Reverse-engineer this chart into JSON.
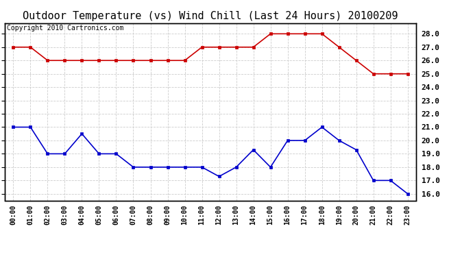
{
  "title": "Outdoor Temperature (vs) Wind Chill (Last 24 Hours) 20100209",
  "copyright": "Copyright 2010 Cartronics.com",
  "x_labels": [
    "00:00",
    "01:00",
    "02:00",
    "03:00",
    "04:00",
    "05:00",
    "06:00",
    "07:00",
    "08:00",
    "09:00",
    "10:00",
    "11:00",
    "12:00",
    "13:00",
    "14:00",
    "15:00",
    "16:00",
    "17:00",
    "18:00",
    "19:00",
    "20:00",
    "21:00",
    "22:00",
    "23:00"
  ],
  "temp_data": [
    27.0,
    27.0,
    26.0,
    26.0,
    26.0,
    26.0,
    26.0,
    26.0,
    26.0,
    26.0,
    26.0,
    27.0,
    27.0,
    27.0,
    27.0,
    28.0,
    28.0,
    28.0,
    28.0,
    27.0,
    26.0,
    25.0,
    25.0,
    25.0
  ],
  "wind_chill_data": [
    21.0,
    21.0,
    19.0,
    19.0,
    20.5,
    19.0,
    19.0,
    18.0,
    18.0,
    18.0,
    18.0,
    18.0,
    17.3,
    18.0,
    19.3,
    18.0,
    20.0,
    20.0,
    21.0,
    20.0,
    19.3,
    17.0,
    17.0,
    16.0
  ],
  "temp_color": "#cc0000",
  "wind_chill_color": "#0000cc",
  "ylim": [
    15.5,
    28.8
  ],
  "yticks": [
    16.0,
    17.0,
    18.0,
    19.0,
    20.0,
    21.0,
    22.0,
    23.0,
    24.0,
    25.0,
    26.0,
    27.0,
    28.0
  ],
  "grid_color": "#cccccc",
  "bg_color": "#ffffff",
  "title_fontsize": 11,
  "copyright_fontsize": 7,
  "tick_fontsize": 8,
  "xtick_fontsize": 7
}
